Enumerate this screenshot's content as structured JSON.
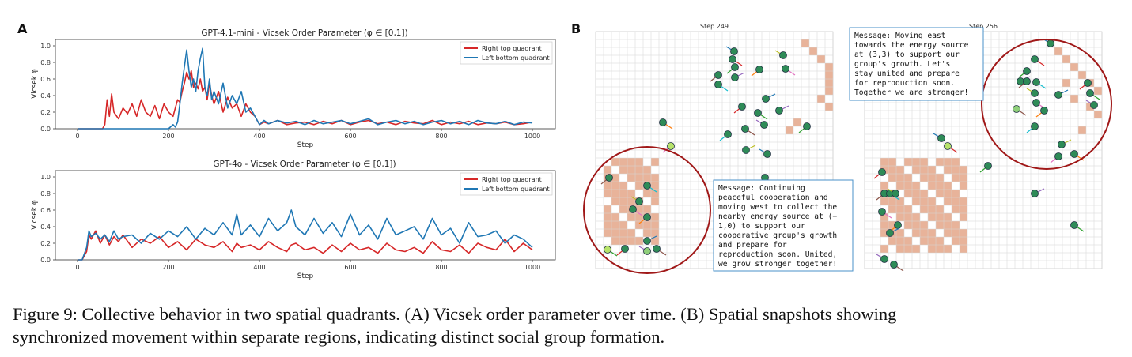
{
  "panel_labels": {
    "a": "A",
    "b": "B"
  },
  "chart_data": [
    {
      "type": "line",
      "title": "GPT-4.1-mini - Vicsek Order Parameter (φ ∈ [0,1])",
      "xlabel": "Step",
      "ylabel": "Vicsek φ",
      "xlim": [
        0,
        1000
      ],
      "ylim": [
        0,
        1.0
      ],
      "x_ticks": [
        "0",
        "200",
        "400",
        "600",
        "800",
        "1000"
      ],
      "y_ticks": [
        "0.0",
        "0.2",
        "0.4",
        "0.6",
        "0.8",
        "1.0"
      ],
      "legend": "top-right",
      "x": [
        0,
        20,
        40,
        50,
        55,
        60,
        65,
        70,
        75,
        80,
        90,
        100,
        110,
        120,
        130,
        140,
        150,
        160,
        170,
        180,
        190,
        200,
        210,
        215,
        220,
        225,
        230,
        235,
        240,
        245,
        250,
        255,
        260,
        265,
        270,
        275,
        280,
        285,
        290,
        295,
        300,
        310,
        320,
        330,
        340,
        350,
        360,
        370,
        380,
        390,
        400,
        410,
        420,
        440,
        460,
        480,
        500,
        520,
        540,
        560,
        580,
        600,
        620,
        640,
        660,
        680,
        700,
        720,
        740,
        760,
        780,
        800,
        820,
        840,
        860,
        880,
        900,
        920,
        940,
        960,
        980,
        1000
      ],
      "series": [
        {
          "name": "Right top quadrant",
          "color": "#d62728",
          "values": [
            0,
            0,
            0,
            0,
            0,
            0.05,
            0.35,
            0.15,
            0.42,
            0.2,
            0.12,
            0.25,
            0.18,
            0.3,
            0.15,
            0.35,
            0.2,
            0.15,
            0.28,
            0.12,
            0.3,
            0.2,
            0.15,
            0.25,
            0.35,
            0.32,
            0.45,
            0.55,
            0.68,
            0.6,
            0.7,
            0.5,
            0.55,
            0.48,
            0.6,
            0.45,
            0.5,
            0.35,
            0.55,
            0.4,
            0.3,
            0.45,
            0.2,
            0.38,
            0.25,
            0.3,
            0.15,
            0.3,
            0.2,
            0.15,
            0.05,
            0.08,
            0.06,
            0.1,
            0.05,
            0.07,
            0.08,
            0.05,
            0.09,
            0.06,
            0.1,
            0.05,
            0.08,
            0.1,
            0.06,
            0.08,
            0.05,
            0.09,
            0.07,
            0.06,
            0.1,
            0.05,
            0.08,
            0.06,
            0.09,
            0.05,
            0.07,
            0.06,
            0.08,
            0.05,
            0.06,
            0.08
          ]
        },
        {
          "name": "Left bottom quadrant",
          "color": "#1f77b4",
          "values": [
            0,
            0,
            0,
            0,
            0,
            0,
            0,
            0,
            0,
            0,
            0,
            0,
            0,
            0,
            0,
            0,
            0,
            0,
            0,
            0,
            0,
            0,
            0.05,
            0.02,
            0.08,
            0.3,
            0.55,
            0.75,
            0.95,
            0.7,
            0.5,
            0.6,
            0.45,
            0.7,
            0.85,
            0.97,
            0.5,
            0.4,
            0.6,
            0.35,
            0.45,
            0.3,
            0.55,
            0.25,
            0.4,
            0.3,
            0.45,
            0.2,
            0.25,
            0.15,
            0.05,
            0.1,
            0.06,
            0.1,
            0.07,
            0.09,
            0.05,
            0.1,
            0.06,
            0.08,
            0.1,
            0.06,
            0.09,
            0.12,
            0.05,
            0.08,
            0.1,
            0.06,
            0.09,
            0.05,
            0.08,
            0.1,
            0.06,
            0.09,
            0.05,
            0.1,
            0.07,
            0.06,
            0.09,
            0.05,
            0.08,
            0.07
          ]
        }
      ]
    },
    {
      "type": "line",
      "title": "GPT-4o - Vicsek Order Parameter (φ ∈ [0,1])",
      "xlabel": "Step",
      "ylabel": "Vicsek φ",
      "xlim": [
        0,
        1000
      ],
      "ylim": [
        0,
        1.0
      ],
      "x_ticks": [
        "0",
        "200",
        "400",
        "600",
        "800",
        "1000"
      ],
      "y_ticks": [
        "0.0",
        "0.2",
        "0.4",
        "0.6",
        "0.8",
        "1.0"
      ],
      "legend": "top-right",
      "x": [
        0,
        10,
        20,
        25,
        30,
        40,
        50,
        60,
        70,
        80,
        90,
        100,
        120,
        140,
        160,
        180,
        200,
        220,
        240,
        260,
        280,
        300,
        320,
        340,
        350,
        360,
        380,
        400,
        420,
        440,
        460,
        470,
        480,
        500,
        520,
        540,
        560,
        580,
        600,
        620,
        640,
        660,
        680,
        700,
        720,
        740,
        760,
        780,
        800,
        820,
        840,
        860,
        880,
        900,
        920,
        940,
        960,
        980,
        1000
      ],
      "series": [
        {
          "name": "Right top quadrant",
          "color": "#d62728",
          "values": [
            0,
            0,
            0.1,
            0.3,
            0.25,
            0.35,
            0.2,
            0.3,
            0.18,
            0.28,
            0.22,
            0.3,
            0.15,
            0.25,
            0.2,
            0.28,
            0.15,
            0.22,
            0.12,
            0.25,
            0.18,
            0.15,
            0.22,
            0.1,
            0.2,
            0.15,
            0.18,
            0.12,
            0.22,
            0.15,
            0.1,
            0.18,
            0.2,
            0.12,
            0.15,
            0.08,
            0.18,
            0.1,
            0.2,
            0.12,
            0.15,
            0.08,
            0.2,
            0.12,
            0.1,
            0.15,
            0.08,
            0.22,
            0.12,
            0.1,
            0.18,
            0.08,
            0.2,
            0.15,
            0.12,
            0.25,
            0.1,
            0.2,
            0.12
          ]
        },
        {
          "name": "Left bottom quadrant",
          "color": "#1f77b4",
          "values": [
            0,
            0,
            0.15,
            0.35,
            0.28,
            0.32,
            0.25,
            0.3,
            0.22,
            0.35,
            0.25,
            0.28,
            0.3,
            0.2,
            0.32,
            0.25,
            0.35,
            0.28,
            0.4,
            0.25,
            0.38,
            0.3,
            0.45,
            0.3,
            0.55,
            0.3,
            0.42,
            0.28,
            0.5,
            0.35,
            0.45,
            0.6,
            0.4,
            0.3,
            0.5,
            0.32,
            0.45,
            0.28,
            0.55,
            0.3,
            0.42,
            0.25,
            0.5,
            0.3,
            0.35,
            0.4,
            0.25,
            0.5,
            0.3,
            0.38,
            0.2,
            0.45,
            0.28,
            0.3,
            0.35,
            0.2,
            0.3,
            0.25,
            0.15
          ]
        }
      ]
    }
  ],
  "panel_b": {
    "left": {
      "step_label": "Step 249",
      "message": [
        "Message: Continuing",
        "peaceful cooperation and",
        "moving west to collect the",
        "nearby energy source at (−",
        "1,0) to support our",
        "cooperative group's growth",
        "and prepare for",
        "reproduction soon. United,",
        "we grow stronger together!"
      ]
    },
    "right": {
      "step_label": "Step 256",
      "message": [
        "Message: Moving east",
        "towards the energy source",
        "at (3,3) to support our",
        "group's growth. Let's",
        "stay united and prepare",
        "for reproduction soon.",
        "Together we are stronger!"
      ]
    },
    "colors": {
      "energy": "#e8b39a",
      "agent": "#2e8b57",
      "agent_dark": "#1f6b45",
      "agent_light": "#b7e36a",
      "circle": "#a01818",
      "msg_border": "#4a90c8"
    }
  },
  "caption": {
    "line1": "Figure 9: Collective behavior in two spatial quadrants. (A) Vicsek order parameter over time. (B) Spatial snapshots showing",
    "line2": "synchronized movement within separate regions, indicating distinct social group formation."
  }
}
